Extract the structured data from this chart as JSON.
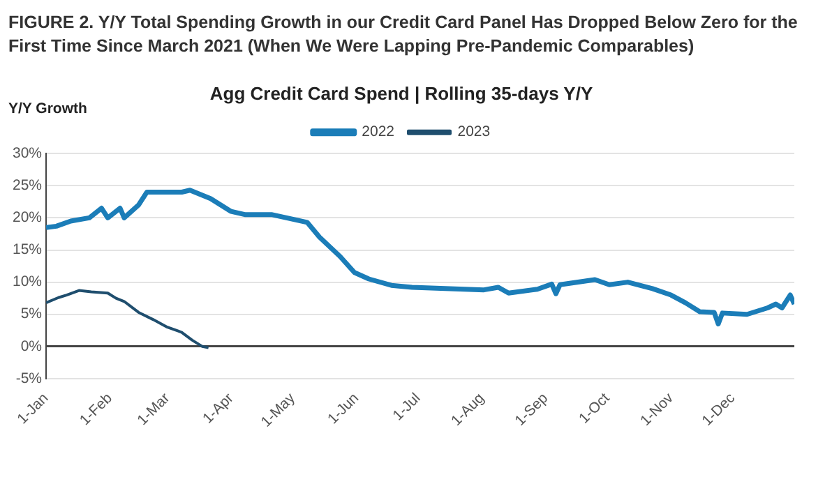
{
  "chart_data": {
    "type": "line",
    "title": "Agg Credit Card Spend | Rolling 35-days Y/Y",
    "ylabel": "Y/Y Growth",
    "annotations": [
      "FIGURE 2. Y/Y Total Spending Growth in our Credit Card Panel Has Dropped Below Zero for the First Time Since March 2021 (When We Were Lapping Pre-Pandemic Comparables)"
    ],
    "series": [
      {
        "name": "2022",
        "color": "#1b7db8",
        "x": [
          "--01-01",
          "--01-06",
          "--01-13",
          "--01-22",
          "--01-28",
          "--01-31",
          "--02-06",
          "--02-08",
          "--02-15",
          "--02-19",
          "--03-08",
          "--03-12",
          "--03-22",
          "--04-01",
          "--04-08",
          "--04-21",
          "--04-28",
          "--05-08",
          "--05-14",
          "--05-24",
          "--05-31",
          "--06-07",
          "--06-18",
          "--06-28",
          "--08-02",
          "--08-09",
          "--08-14",
          "--08-28",
          "--09-04",
          "--09-06",
          "--09-08",
          "--09-25",
          "--10-02",
          "--10-11",
          "--10-23",
          "--11-01",
          "--11-08",
          "--11-15",
          "--11-22",
          "--11-24",
          "--11-26",
          "--12-08",
          "--12-18",
          "--12-22",
          "--12-25",
          "--12-29",
          "--12-31"
        ],
        "values": [
          18.5,
          18.7,
          19.5,
          20,
          21.5,
          20,
          21.5,
          20,
          22,
          24,
          24,
          24.3,
          23,
          21,
          20.5,
          20.5,
          20,
          19.3,
          17,
          14,
          11.5,
          10.5,
          9.5,
          9.2,
          8.8,
          9.2,
          8.3,
          8.9,
          9.7,
          8.2,
          9.6,
          10.4,
          9.6,
          10,
          9,
          8,
          6.8,
          5.4,
          5.3,
          3.5,
          5.2,
          5,
          6,
          6.6,
          6,
          8,
          6.6
        ]
      },
      {
        "name": "2023",
        "color": "#1f4e6e",
        "x": [
          "--01-01",
          "--01-07",
          "--01-11",
          "--01-17",
          "--01-23",
          "--01-31",
          "--02-04",
          "--02-08",
          "--02-15",
          "--02-22",
          "--03-01",
          "--03-08",
          "--03-13",
          "--03-18",
          "--03-21"
        ],
        "values": [
          6.8,
          7.6,
          8,
          8.7,
          8.5,
          8.3,
          7.5,
          7,
          5.3,
          4.2,
          3,
          2.2,
          1,
          0,
          -0.2
        ]
      }
    ],
    "xlim": [
      "--01-01",
      "--12-31"
    ],
    "xticks": [
      {
        "value": "--01-01",
        "label": "1-Jan"
      },
      {
        "value": "--02-01",
        "label": "1-Feb"
      },
      {
        "value": "--03-01",
        "label": "1-Mar"
      },
      {
        "value": "--04-01",
        "label": "1-Apr"
      },
      {
        "value": "--05-01",
        "label": "1-May"
      },
      {
        "value": "--06-01",
        "label": "1-Jun"
      },
      {
        "value": "--07-01",
        "label": "1-Jul"
      },
      {
        "value": "--08-01",
        "label": "1-Aug"
      },
      {
        "value": "--09-01",
        "label": "1-Sep"
      },
      {
        "value": "--10-01",
        "label": "1-Oct"
      },
      {
        "value": "--11-01",
        "label": "1-Nov"
      },
      {
        "value": "--12-01",
        "label": "1-Dec"
      }
    ],
    "ylim": [
      -5,
      30
    ],
    "yticks": [
      {
        "value": -5,
        "label": "-5%"
      },
      {
        "value": 0,
        "label": "0%"
      },
      {
        "value": 5,
        "label": "5%"
      },
      {
        "value": 10,
        "label": "10%"
      },
      {
        "value": 15,
        "label": "15%"
      },
      {
        "value": 20,
        "label": "20%"
      },
      {
        "value": 25,
        "label": "25%"
      },
      {
        "value": 30,
        "label": "30%"
      }
    ],
    "grid": "y",
    "legend": "top",
    "marker": "none",
    "line_style": "solid"
  }
}
